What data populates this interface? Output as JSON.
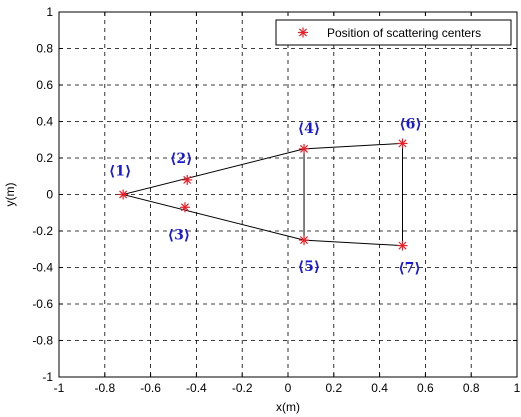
{
  "chart_data": {
    "type": "scatter",
    "xlabel": "x(m)",
    "ylabel": "y(m)",
    "xlim": [
      -1,
      1
    ],
    "ylim": [
      -1,
      1
    ],
    "grid": true,
    "legend_position": "top-right",
    "x_ticks": [
      "-1",
      "-0.8",
      "-0.6",
      "-0.4",
      "-0.2",
      "0",
      "0.2",
      "0.4",
      "0.6",
      "0.8",
      "1"
    ],
    "y_ticks": [
      "-1",
      "-0.8",
      "-0.6",
      "-0.4",
      "-0.2",
      "0",
      "0.2",
      "0.4",
      "0.6",
      "0.8",
      "1"
    ],
    "marker_color": "#e8202a",
    "label_color": "#1a1ad6",
    "series": [
      {
        "name": "Position of scattering centers",
        "points": [
          {
            "id": "1",
            "label": "⟨1⟩",
            "x": -0.72,
            "y": 0.0
          },
          {
            "id": "2",
            "label": "⟨2⟩",
            "x": -0.44,
            "y": 0.08
          },
          {
            "id": "3",
            "label": "⟨3⟩",
            "x": -0.45,
            "y": -0.07
          },
          {
            "id": "4",
            "label": "⟨4⟩",
            "x": 0.07,
            "y": 0.25
          },
          {
            "id": "5",
            "label": "⟨5⟩",
            "x": 0.07,
            "y": -0.25
          },
          {
            "id": "6",
            "label": "⟨6⟩",
            "x": 0.5,
            "y": 0.28
          },
          {
            "id": "7",
            "label": "⟨7⟩",
            "x": 0.5,
            "y": -0.28
          }
        ]
      }
    ],
    "outline_segments": [
      [
        -0.72,
        0.0,
        0.07,
        0.25
      ],
      [
        0.07,
        0.25,
        0.5,
        0.28
      ],
      [
        -0.72,
        0.0,
        0.07,
        -0.25
      ],
      [
        0.07,
        -0.25,
        0.5,
        -0.28
      ],
      [
        0.07,
        0.25,
        0.07,
        -0.25
      ],
      [
        0.5,
        0.28,
        0.5,
        -0.28
      ]
    ]
  }
}
